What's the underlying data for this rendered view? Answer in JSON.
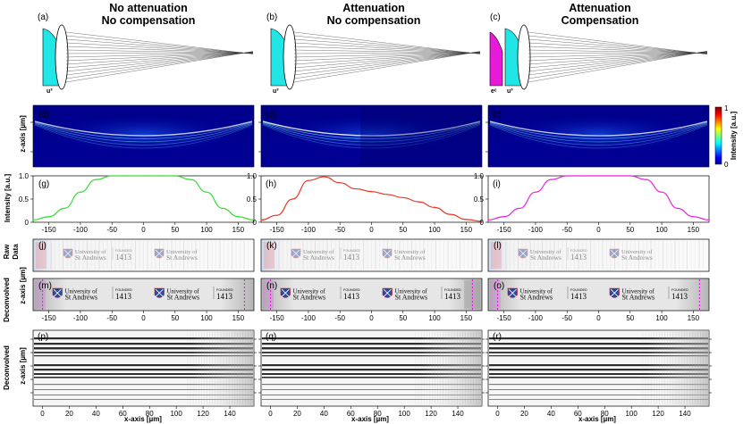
{
  "columns": [
    {
      "label": "(a)",
      "title1": "No attenuation",
      "title2": "No compensation",
      "color": "#33dd33",
      "wedge_u": "u³",
      "wedge_e": ""
    },
    {
      "label": "(b)",
      "title1": "Attenuation",
      "title2": "No compensation",
      "color": "#ee3322",
      "wedge_u": "u³",
      "wedge_e": ""
    },
    {
      "label": "(c)",
      "title1": "Attenuation",
      "title2": "Compensation",
      "color": "#ee22dd",
      "wedge_u": "u³",
      "wedge_e": "eᶜ"
    }
  ],
  "panel_labels": {
    "heat": [
      "(d)",
      "(e)",
      "(f)"
    ],
    "profile": [
      "(g)",
      "(h)",
      "(i)"
    ],
    "raw": [
      "(j)",
      "(k)",
      "(l)"
    ],
    "deconv": [
      "(m)",
      "(n)",
      "(o)"
    ],
    "stripes": [
      "(p)",
      "(q)",
      "(r)"
    ]
  },
  "axes": {
    "z_axis": "z-axis [µm]",
    "intensity": "Intensity [a.u.]",
    "raw_data_1": "Raw",
    "raw_data_2": "Data",
    "deconvolved": "Deconvolved",
    "x_axis": "x-axis [µm]"
  },
  "colorbar": {
    "label": "Intensity [a.u.]",
    "max": "1",
    "min": "0"
  },
  "profile_y_ticks": [
    "1.0",
    "0.5",
    "0"
  ],
  "profile_x_ticks": [
    "-150",
    "-100",
    "-50",
    "0",
    "50",
    "100",
    "150"
  ],
  "stripe_x_ticks": [
    "0",
    "20",
    "40",
    "60",
    "80",
    "100",
    "120",
    "140"
  ],
  "logo": {
    "line1": "University of",
    "line2": "St Andrews",
    "founded": "FOUNDED",
    "year": "1413"
  },
  "chart_data": [
    {
      "type": "line",
      "title": "(g) No attenuation, No compensation",
      "xlabel": "",
      "ylabel": "Intensity [a.u.]",
      "xlim": [
        -175,
        175
      ],
      "ylim": [
        0,
        1
      ],
      "x": [
        -175,
        -150,
        -125,
        -100,
        -75,
        -50,
        -25,
        0,
        25,
        50,
        75,
        100,
        125,
        150,
        175
      ],
      "series": [
        {
          "name": "intensity",
          "values": [
            0.05,
            0.12,
            0.3,
            0.65,
            0.92,
            1.0,
            1.0,
            1.0,
            1.0,
            1.0,
            0.92,
            0.65,
            0.3,
            0.12,
            0.05
          ]
        }
      ]
    },
    {
      "type": "line",
      "title": "(h) Attenuation, No compensation",
      "xlabel": "",
      "ylabel": "Intensity [a.u.]",
      "xlim": [
        -175,
        175
      ],
      "ylim": [
        0,
        1
      ],
      "x": [
        -175,
        -150,
        -125,
        -100,
        -75,
        -50,
        -25,
        0,
        25,
        50,
        75,
        100,
        125,
        150,
        175
      ],
      "series": [
        {
          "name": "intensity",
          "values": [
            0.05,
            0.15,
            0.5,
            0.9,
            0.98,
            0.85,
            0.72,
            0.66,
            0.6,
            0.53,
            0.44,
            0.32,
            0.17,
            0.06,
            0.02
          ]
        }
      ]
    },
    {
      "type": "line",
      "title": "(i) Attenuation, Compensation",
      "xlabel": "",
      "ylabel": "Intensity [a.u.]",
      "xlim": [
        -175,
        175
      ],
      "ylim": [
        0,
        1
      ],
      "x": [
        -175,
        -150,
        -125,
        -100,
        -75,
        -50,
        -25,
        0,
        25,
        50,
        75,
        100,
        125,
        150,
        175
      ],
      "series": [
        {
          "name": "intensity",
          "values": [
            0.05,
            0.12,
            0.3,
            0.65,
            0.92,
            1.0,
            1.0,
            1.0,
            1.0,
            1.0,
            0.92,
            0.65,
            0.3,
            0.12,
            0.05
          ]
        }
      ]
    }
  ]
}
